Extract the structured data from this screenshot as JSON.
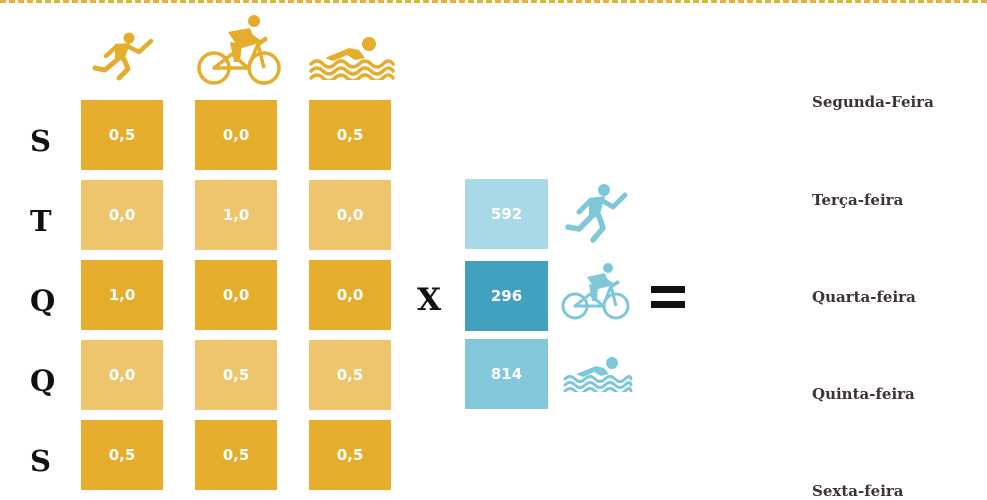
{
  "row_labels": [
    "S",
    "T",
    "Q",
    "Q",
    "S"
  ],
  "matrix": [
    [
      "0,5",
      "0,0",
      "0,5"
    ],
    [
      "0,0",
      "1,0",
      "0,0"
    ],
    [
      "1,0",
      "0,0",
      "0,0"
    ],
    [
      "0,0",
      "0,5",
      "0,5"
    ],
    [
      "0,5",
      "0,5",
      "0,5"
    ]
  ],
  "operator": "X",
  "vector": [
    "592",
    "296",
    "814"
  ],
  "days": [
    "Segunda-Feira",
    "Terça-feira",
    "Quarta-feira",
    "Quinta-feira",
    "Sexta-feira"
  ],
  "icons": {
    "columns": [
      "running-icon",
      "cycling-icon",
      "swimming-icon"
    ],
    "vector": [
      "running-icon",
      "cycling-icon",
      "swimming-icon"
    ]
  },
  "colors": {
    "cell_dark": "#e6ad2c",
    "cell_light": "#eec56c",
    "vector_light": "#a9d8e6",
    "vector_dark": "#42a1be",
    "vector_mid": "#83c8da",
    "icon_gold": "#e6ad2c",
    "icon_blue": "#7ec6da",
    "dash": "#e2b13a"
  }
}
